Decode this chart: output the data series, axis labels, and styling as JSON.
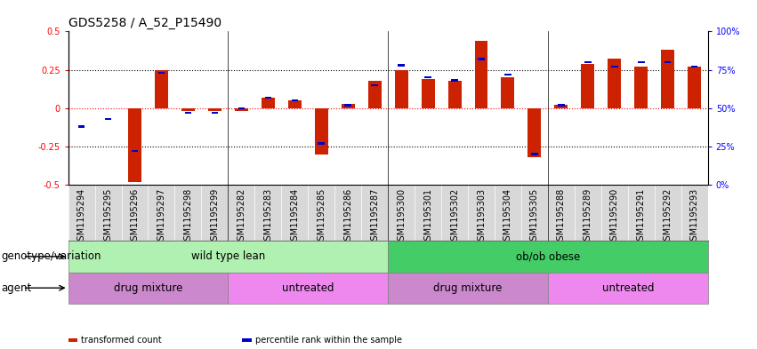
{
  "title": "GDS5258 / A_52_P15490",
  "samples": [
    "GSM1195294",
    "GSM1195295",
    "GSM1195296",
    "GSM1195297",
    "GSM1195298",
    "GSM1195299",
    "GSM1195282",
    "GSM1195283",
    "GSM1195284",
    "GSM1195285",
    "GSM1195286",
    "GSM1195287",
    "GSM1195300",
    "GSM1195301",
    "GSM1195302",
    "GSM1195303",
    "GSM1195304",
    "GSM1195305",
    "GSM1195288",
    "GSM1195289",
    "GSM1195290",
    "GSM1195291",
    "GSM1195292",
    "GSM1195293"
  ],
  "transformed_count": [
    0.0,
    0.0,
    -0.48,
    0.25,
    -0.02,
    -0.02,
    -0.02,
    0.07,
    0.05,
    -0.3,
    0.03,
    0.18,
    0.25,
    0.19,
    0.18,
    0.44,
    0.2,
    -0.32,
    0.02,
    0.29,
    0.32,
    0.27,
    0.38,
    0.27
  ],
  "percentile_rank": [
    38,
    43,
    22,
    73,
    47,
    47,
    50,
    57,
    55,
    27,
    52,
    65,
    78,
    70,
    68,
    82,
    72,
    20,
    52,
    80,
    77,
    80,
    80,
    77
  ],
  "genotype_groups": [
    {
      "label": "wild type lean",
      "start": 0,
      "end": 12,
      "color": "#b0f0b0"
    },
    {
      "label": "ob/ob obese",
      "start": 12,
      "end": 24,
      "color": "#44cc66"
    }
  ],
  "agent_groups": [
    {
      "label": "drug mixture",
      "start": 0,
      "end": 6,
      "color": "#cc88cc"
    },
    {
      "label": "untreated",
      "start": 6,
      "end": 12,
      "color": "#ee88ee"
    },
    {
      "label": "drug mixture",
      "start": 12,
      "end": 18,
      "color": "#cc88cc"
    },
    {
      "label": "untreated",
      "start": 18,
      "end": 24,
      "color": "#ee88ee"
    }
  ],
  "bar_color": "#CC2200",
  "dot_color": "#0000CC",
  "ylim": [
    -0.5,
    0.5
  ],
  "yticks_left": [
    -0.5,
    -0.25,
    0.0,
    0.25,
    0.5
  ],
  "ytick_labels_left": [
    "-0.5",
    "-0.25",
    "0",
    "0.25",
    "0.5"
  ],
  "yticks_right_pct": [
    0,
    25,
    50,
    75,
    100
  ],
  "ytick_labels_right": [
    "0%",
    "25%",
    "50%",
    "75%",
    "100%"
  ],
  "hlines_dotted": [
    -0.25,
    0.25
  ],
  "hline_red": 0.0,
  "legend_items": [
    {
      "label": "transformed count",
      "color": "#CC2200"
    },
    {
      "label": "percentile rank within the sample",
      "color": "#0000CC"
    }
  ],
  "genotype_label": "genotype/variation",
  "agent_label": "agent",
  "title_fontsize": 10,
  "label_fontsize": 8.5,
  "tick_fontsize": 7,
  "annot_fontsize": 8.5
}
